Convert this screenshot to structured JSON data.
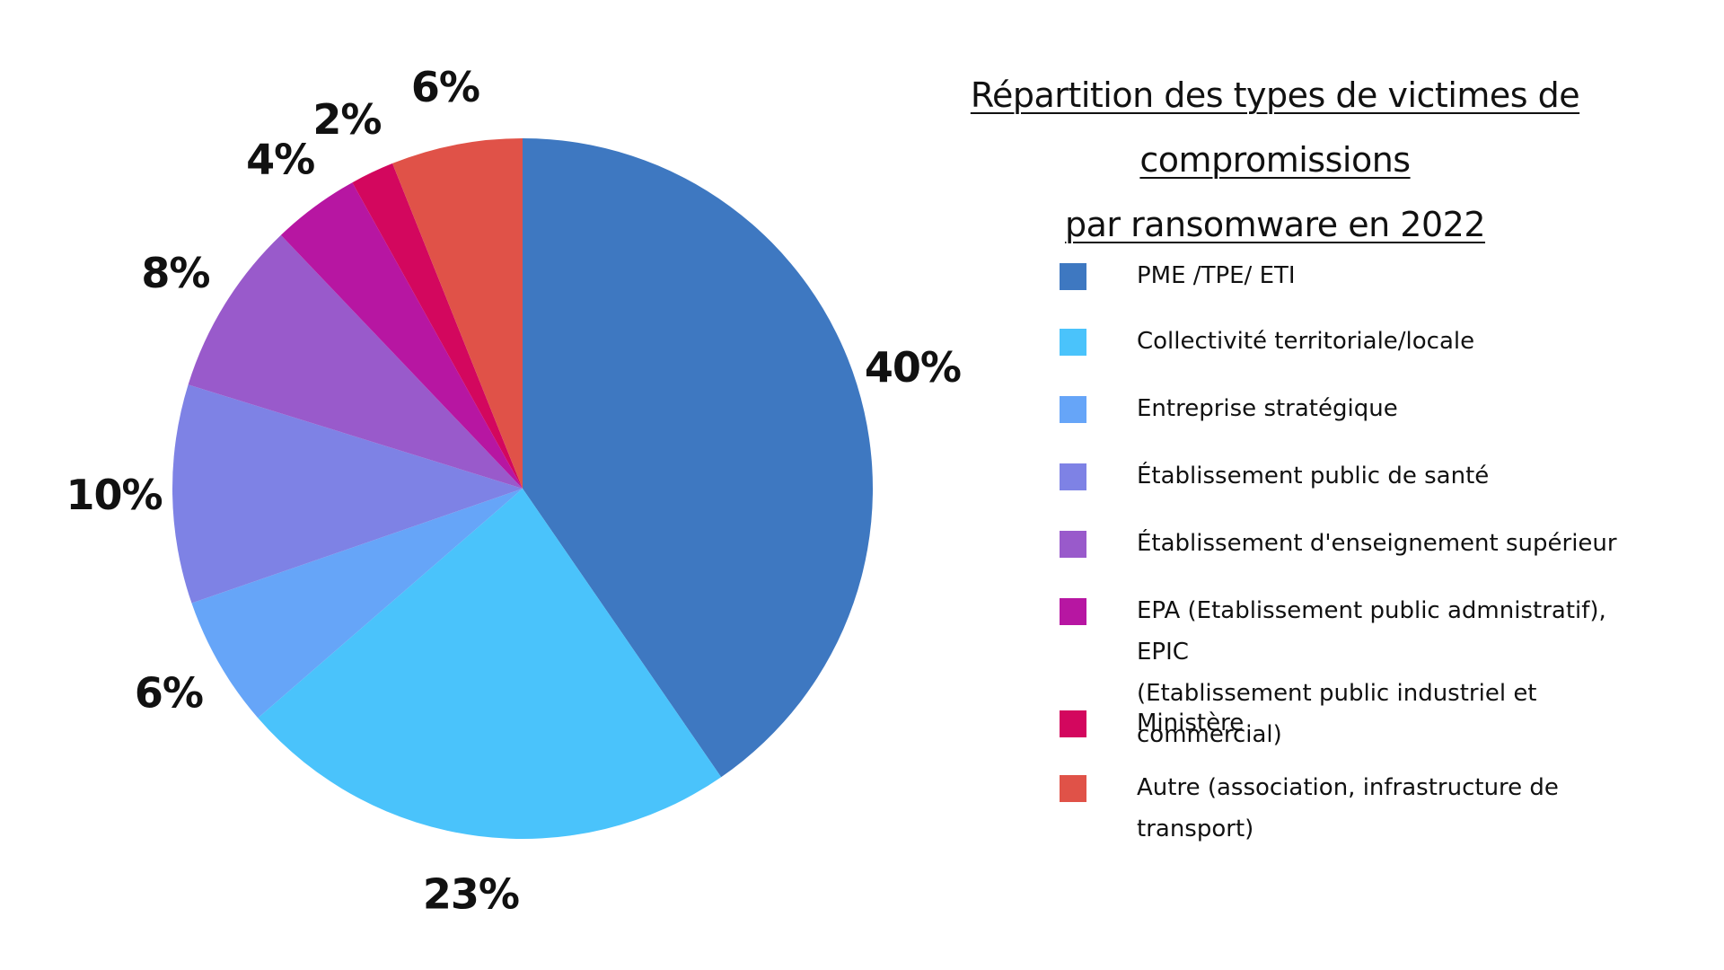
{
  "chart_data": {
    "type": "pie",
    "title_line1": "Répartition des types de victimes de compromissions",
    "title_line2": "par ransomware en 2022",
    "start": "12 o'clock",
    "direction": "clockwise",
    "legend_position": "right",
    "slices": [
      {
        "label": "PME /TPE/ ETI",
        "value": 40,
        "display": "40%",
        "color": "#3E78C1"
      },
      {
        "label": "Collectivité territoriale/locale",
        "value": 23,
        "display": "23%",
        "color": "#4AC3FB"
      },
      {
        "label": "Entreprise stratégique",
        "value": 6,
        "display": "6%",
        "color": "#66A5F8"
      },
      {
        "label": "Établissement public de santé",
        "value": 10,
        "display": "10%",
        "color": "#7E82E5"
      },
      {
        "label": "Établissement d'enseignement supérieur",
        "value": 8,
        "display": "8%",
        "color": "#995ACB"
      },
      {
        "label": "EPA (Etablissement public admnistratif), EPIC\n(Etablissement public industriel et commercial)",
        "value": 4,
        "display": "4%",
        "color": "#B716A2"
      },
      {
        "label": "Ministère",
        "value": 2,
        "display": "2%",
        "color": "#D3075E"
      },
      {
        "label": "Autre (association, infrastructure de transport)",
        "value": 6,
        "display": "6%",
        "color": "#E05248"
      }
    ]
  }
}
